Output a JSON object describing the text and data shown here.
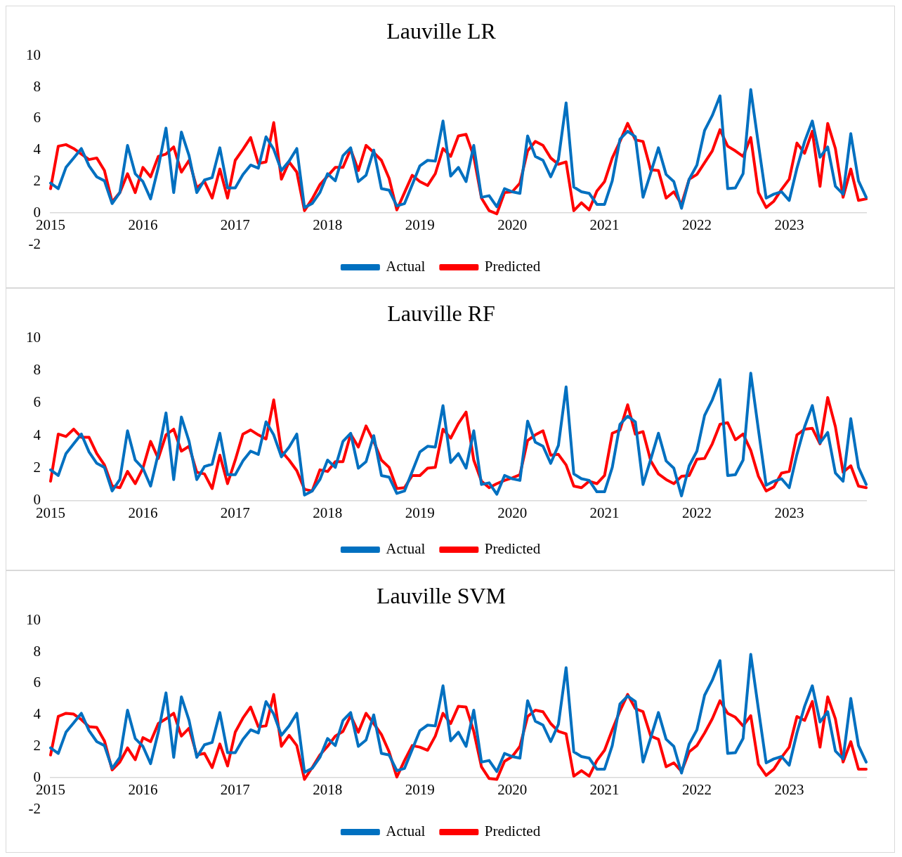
{
  "chart_data": [
    {
      "type": "line",
      "title": "Lauville LR",
      "categories": [
        "2015",
        null,
        null,
        null,
        null,
        null,
        null,
        null,
        null,
        null,
        null,
        null,
        "2016",
        null,
        null,
        null,
        null,
        null,
        null,
        null,
        null,
        null,
        null,
        null,
        "2017",
        null,
        null,
        null,
        null,
        null,
        null,
        null,
        null,
        null,
        null,
        null,
        "2018",
        null,
        null,
        null,
        null,
        null,
        null,
        null,
        null,
        null,
        null,
        null,
        "2019",
        null,
        null,
        null,
        null,
        null,
        null,
        null,
        null,
        null,
        null,
        null,
        "2020",
        null,
        null,
        null,
        null,
        null,
        null,
        null,
        null,
        null,
        null,
        null,
        "2021",
        null,
        null,
        null,
        null,
        null,
        null,
        null,
        null,
        null,
        null,
        null,
        "2022",
        null,
        null,
        null,
        null,
        null,
        null,
        null,
        null,
        null,
        null,
        null,
        "2023",
        null,
        null,
        null,
        null,
        null,
        null,
        null,
        null,
        null,
        null
      ],
      "ylim": [
        -2,
        10
      ],
      "yticks": [
        -2,
        0,
        2,
        4,
        6,
        8,
        10
      ],
      "grid": false,
      "legend": "bottom",
      "marker": "none",
      "series": [
        {
          "name": "Actual",
          "color": "#0070c0",
          "values": [
            1.9,
            1.55,
            2.9,
            3.5,
            4.1,
            3.0,
            2.3,
            2.05,
            0.6,
            1.3,
            4.3,
            2.5,
            2.0,
            0.9,
            2.9,
            5.4,
            1.3,
            5.15,
            3.65,
            1.3,
            2.1,
            2.25,
            4.15,
            1.6,
            1.6,
            2.45,
            3.05,
            2.85,
            4.85,
            4.05,
            2.7,
            3.3,
            4.1,
            0.35,
            0.6,
            1.3,
            2.5,
            2.05,
            3.65,
            4.15,
            2.0,
            2.4,
            4.0,
            1.55,
            1.45,
            0.45,
            0.6,
            1.8,
            3.0,
            3.35,
            3.3,
            5.85,
            2.35,
            2.9,
            2.0,
            4.3,
            1.0,
            1.1,
            0.4,
            1.55,
            1.35,
            1.25,
            4.9,
            3.6,
            3.35,
            2.3,
            3.4,
            7.0,
            1.65,
            1.35,
            1.25,
            0.55,
            0.55,
            2.05,
            4.7,
            5.2,
            4.85,
            1.0,
            2.55,
            4.15,
            2.45,
            2.0,
            0.3,
            2.15,
            3.05,
            5.25,
            6.2,
            7.45,
            1.55,
            1.6,
            2.5,
            7.85,
            4.35,
            0.95,
            1.2,
            1.35,
            0.8,
            2.85,
            4.55,
            5.85,
            3.55,
            4.2,
            1.7,
            1.2,
            5.05,
            2.05,
            1.0
          ]
        },
        {
          "name": "Predicted",
          "color": "#ff0000",
          "values": [
            1.55,
            4.25,
            4.35,
            4.1,
            3.75,
            3.4,
            3.5,
            2.7,
            0.7,
            1.3,
            2.5,
            1.3,
            2.9,
            2.3,
            3.6,
            3.75,
            4.2,
            2.6,
            3.35,
            1.6,
            2.0,
            0.95,
            2.8,
            0.95,
            3.35,
            4.05,
            4.8,
            3.15,
            3.25,
            5.75,
            2.15,
            3.25,
            2.6,
            0.15,
            0.9,
            1.8,
            2.35,
            2.9,
            2.9,
            4.05,
            2.7,
            4.3,
            3.85,
            3.35,
            2.2,
            0.2,
            1.3,
            2.4,
            2.0,
            1.75,
            2.5,
            4.1,
            3.6,
            4.9,
            5.0,
            3.6,
            0.95,
            0.15,
            -0.05,
            1.3,
            1.35,
            1.9,
            3.95,
            4.55,
            4.3,
            3.5,
            3.1,
            3.25,
            0.15,
            0.65,
            0.2,
            1.4,
            2.0,
            3.5,
            4.55,
            5.7,
            4.65,
            4.55,
            2.75,
            2.7,
            0.95,
            1.35,
            0.55,
            2.15,
            2.45,
            3.2,
            3.95,
            5.3,
            4.25,
            3.95,
            3.6,
            4.8,
            1.3,
            0.35,
            0.75,
            1.5,
            2.15,
            4.45,
            3.8,
            5.2,
            1.7,
            5.7,
            4.1,
            1.0,
            2.8,
            0.8,
            0.9
          ]
        }
      ]
    },
    {
      "type": "line",
      "title": "Lauville RF",
      "categories": [
        "2015",
        null,
        null,
        null,
        null,
        null,
        null,
        null,
        null,
        null,
        null,
        null,
        "2016",
        null,
        null,
        null,
        null,
        null,
        null,
        null,
        null,
        null,
        null,
        null,
        "2017",
        null,
        null,
        null,
        null,
        null,
        null,
        null,
        null,
        null,
        null,
        null,
        "2018",
        null,
        null,
        null,
        null,
        null,
        null,
        null,
        null,
        null,
        null,
        null,
        "2019",
        null,
        null,
        null,
        null,
        null,
        null,
        null,
        null,
        null,
        null,
        null,
        "2020",
        null,
        null,
        null,
        null,
        null,
        null,
        null,
        null,
        null,
        null,
        null,
        "2021",
        null,
        null,
        null,
        null,
        null,
        null,
        null,
        null,
        null,
        null,
        null,
        "2022",
        null,
        null,
        null,
        null,
        null,
        null,
        null,
        null,
        null,
        null,
        null,
        "2023",
        null,
        null,
        null,
        null,
        null,
        null,
        null,
        null,
        null,
        null
      ],
      "ylim": [
        0,
        10
      ],
      "yticks": [
        0,
        2,
        4,
        6,
        8,
        10
      ],
      "grid": false,
      "legend": "bottom",
      "marker": "none",
      "series": [
        {
          "name": "Actual",
          "color": "#0070c0",
          "values": [
            1.9,
            1.55,
            2.9,
            3.5,
            4.1,
            3.0,
            2.3,
            2.05,
            0.6,
            1.3,
            4.3,
            2.5,
            2.0,
            0.9,
            2.9,
            5.4,
            1.3,
            5.15,
            3.65,
            1.3,
            2.1,
            2.25,
            4.15,
            1.6,
            1.6,
            2.45,
            3.05,
            2.85,
            4.85,
            4.05,
            2.7,
            3.3,
            4.1,
            0.35,
            0.6,
            1.3,
            2.5,
            2.05,
            3.65,
            4.15,
            2.0,
            2.4,
            4.0,
            1.55,
            1.45,
            0.45,
            0.6,
            1.8,
            3.0,
            3.35,
            3.3,
            5.85,
            2.35,
            2.9,
            2.0,
            4.3,
            1.0,
            1.1,
            0.4,
            1.55,
            1.35,
            1.25,
            4.9,
            3.6,
            3.35,
            2.3,
            3.4,
            7.0,
            1.65,
            1.35,
            1.25,
            0.55,
            0.55,
            2.05,
            4.7,
            5.2,
            4.85,
            1.0,
            2.55,
            4.15,
            2.45,
            2.0,
            0.3,
            2.15,
            3.05,
            5.25,
            6.2,
            7.45,
            1.55,
            1.6,
            2.5,
            7.85,
            4.35,
            0.95,
            1.2,
            1.35,
            0.8,
            2.85,
            4.55,
            5.85,
            3.55,
            4.2,
            1.7,
            1.2,
            5.05,
            2.05,
            1.0
          ]
        },
        {
          "name": "Predicted",
          "color": "#ff0000",
          "values": [
            1.2,
            4.1,
            3.95,
            4.4,
            3.9,
            3.9,
            2.9,
            2.2,
            0.9,
            0.8,
            1.8,
            1.05,
            2.0,
            3.65,
            2.6,
            4.05,
            4.4,
            3.05,
            3.35,
            1.75,
            1.65,
            0.75,
            2.8,
            1.05,
            2.5,
            4.1,
            4.35,
            4.05,
            3.8,
            6.2,
            3.05,
            2.5,
            1.85,
            0.7,
            0.6,
            1.9,
            1.8,
            2.4,
            2.4,
            4.1,
            3.3,
            4.6,
            3.65,
            2.5,
            2.05,
            0.75,
            0.8,
            1.55,
            1.55,
            2.0,
            2.05,
            4.4,
            3.85,
            4.75,
            5.45,
            2.5,
            1.2,
            0.8,
            1.05,
            1.25,
            1.4,
            1.6,
            3.7,
            4.05,
            4.3,
            2.8,
            2.85,
            2.2,
            0.9,
            0.8,
            1.2,
            1.05,
            1.55,
            4.15,
            4.35,
            5.9,
            4.1,
            4.25,
            2.45,
            1.65,
            1.3,
            1.05,
            1.5,
            1.55,
            2.55,
            2.6,
            3.5,
            4.7,
            4.8,
            3.75,
            4.1,
            3.1,
            1.5,
            0.6,
            0.85,
            1.7,
            1.8,
            4.05,
            4.4,
            4.45,
            3.5,
            6.35,
            4.55,
            1.75,
            2.15,
            0.9,
            0.8
          ]
        }
      ]
    },
    {
      "type": "line",
      "title": "Lauville SVM",
      "categories": [
        "2015",
        null,
        null,
        null,
        null,
        null,
        null,
        null,
        null,
        null,
        null,
        null,
        "2016",
        null,
        null,
        null,
        null,
        null,
        null,
        null,
        null,
        null,
        null,
        null,
        "2017",
        null,
        null,
        null,
        null,
        null,
        null,
        null,
        null,
        null,
        null,
        null,
        "2018",
        null,
        null,
        null,
        null,
        null,
        null,
        null,
        null,
        null,
        null,
        null,
        "2019",
        null,
        null,
        null,
        null,
        null,
        null,
        null,
        null,
        null,
        null,
        null,
        "2020",
        null,
        null,
        null,
        null,
        null,
        null,
        null,
        null,
        null,
        null,
        null,
        "2021",
        null,
        null,
        null,
        null,
        null,
        null,
        null,
        null,
        null,
        null,
        null,
        "2022",
        null,
        null,
        null,
        null,
        null,
        null,
        null,
        null,
        null,
        null,
        null,
        "2023",
        null,
        null,
        null,
        null,
        null,
        null,
        null,
        null,
        null,
        null
      ],
      "ylim": [
        -2,
        10
      ],
      "yticks": [
        -2,
        0,
        2,
        4,
        6,
        8,
        10
      ],
      "grid": false,
      "legend": "bottom",
      "marker": "none",
      "series": [
        {
          "name": "Actual",
          "color": "#0070c0",
          "values": [
            1.9,
            1.55,
            2.9,
            3.5,
            4.1,
            3.0,
            2.3,
            2.05,
            0.6,
            1.3,
            4.3,
            2.5,
            2.0,
            0.9,
            2.9,
            5.4,
            1.3,
            5.15,
            3.65,
            1.3,
            2.1,
            2.25,
            4.15,
            1.6,
            1.6,
            2.45,
            3.05,
            2.85,
            4.85,
            4.05,
            2.7,
            3.3,
            4.1,
            0.35,
            0.6,
            1.3,
            2.5,
            2.05,
            3.65,
            4.15,
            2.0,
            2.4,
            4.0,
            1.55,
            1.45,
            0.45,
            0.6,
            1.8,
            3.0,
            3.35,
            3.3,
            5.85,
            2.35,
            2.9,
            2.0,
            4.3,
            1.0,
            1.1,
            0.4,
            1.55,
            1.35,
            1.25,
            4.9,
            3.6,
            3.35,
            2.3,
            3.4,
            7.0,
            1.65,
            1.35,
            1.25,
            0.55,
            0.55,
            2.05,
            4.7,
            5.2,
            4.85,
            1.0,
            2.55,
            4.15,
            2.45,
            2.0,
            0.3,
            2.15,
            3.05,
            5.25,
            6.2,
            7.45,
            1.55,
            1.6,
            2.5,
            7.85,
            4.35,
            0.95,
            1.2,
            1.35,
            0.8,
            2.85,
            4.55,
            5.85,
            3.55,
            4.2,
            1.7,
            1.2,
            5.05,
            2.05,
            1.0
          ]
        },
        {
          "name": "Predicted",
          "color": "#ff0000",
          "values": [
            1.45,
            3.9,
            4.1,
            4.05,
            3.7,
            3.25,
            3.2,
            2.35,
            0.5,
            1.0,
            1.9,
            1.15,
            2.55,
            2.3,
            3.45,
            3.75,
            4.1,
            2.65,
            3.15,
            1.45,
            1.55,
            0.65,
            2.15,
            0.75,
            2.9,
            3.8,
            4.5,
            3.25,
            3.3,
            5.3,
            2.0,
            2.7,
            2.05,
            -0.1,
            0.65,
            1.45,
            2.0,
            2.65,
            2.95,
            3.95,
            2.9,
            4.1,
            3.45,
            2.75,
            1.65,
            0.05,
            1.1,
            2.05,
            1.95,
            1.75,
            2.65,
            4.1,
            3.45,
            4.55,
            4.5,
            2.95,
            0.7,
            -0.05,
            -0.1,
            1.05,
            1.35,
            2.0,
            3.9,
            4.3,
            4.2,
            3.45,
            2.95,
            2.8,
            0.1,
            0.45,
            0.1,
            1.1,
            1.75,
            3.05,
            4.25,
            5.3,
            4.4,
            4.2,
            2.65,
            2.45,
            0.7,
            0.95,
            0.4,
            1.65,
            2.05,
            2.85,
            3.75,
            4.9,
            4.1,
            3.85,
            3.3,
            3.95,
            0.85,
            0.15,
            0.55,
            1.3,
            1.95,
            3.9,
            3.65,
            4.85,
            1.95,
            5.15,
            3.75,
            1.0,
            2.3,
            0.55,
            0.55
          ]
        }
      ]
    }
  ]
}
